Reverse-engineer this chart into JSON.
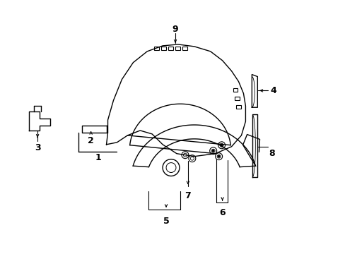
{
  "background_color": "#ffffff",
  "line_color": "#000000",
  "lw": 1.0,
  "label_fontsize": 9,
  "figsize": [
    4.89,
    3.6
  ],
  "dpi": 100
}
